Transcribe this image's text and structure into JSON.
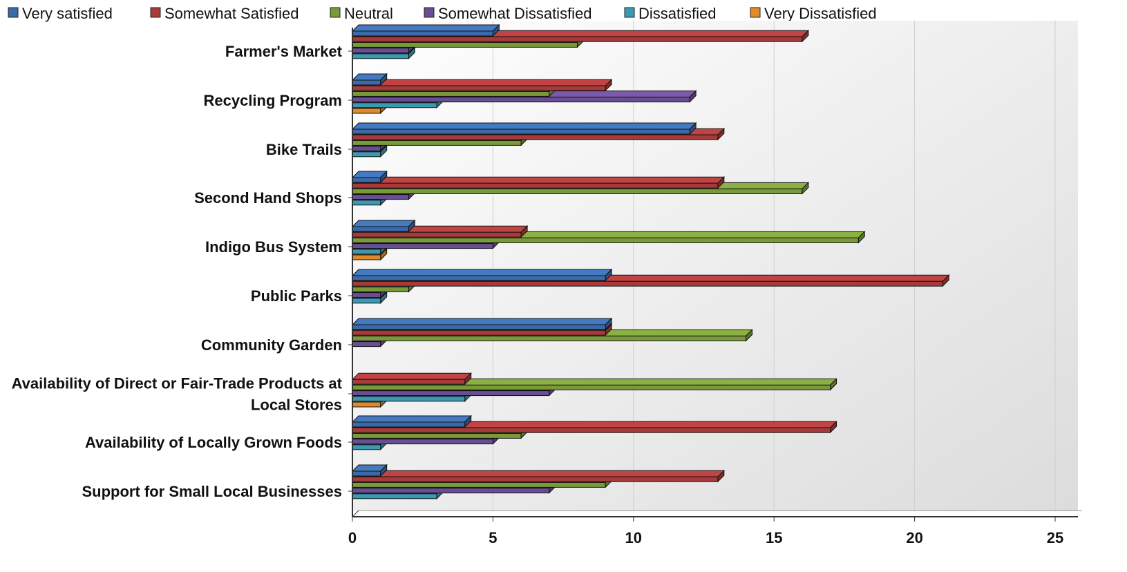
{
  "chart_data": {
    "type": "bar",
    "orientation": "horizontal",
    "grid": true,
    "legend_position": "top",
    "xlim": [
      0,
      25
    ],
    "x_ticks": [
      "0",
      "5",
      "10",
      "15",
      "20",
      "25"
    ],
    "categories": [
      "Farmer's Market",
      "Recycling Program",
      "Bike Trails",
      "Second Hand Shops",
      "Indigo Bus System",
      "Public Parks",
      "Community Garden",
      "Availability of Direct or Fair-Trade Products at Local Stores",
      "Availability of Locally Grown Foods",
      "Support for Small Local Businesses"
    ],
    "category_lines": [
      [
        "Farmer's Market"
      ],
      [
        "Recycling Program"
      ],
      [
        "Bike Trails"
      ],
      [
        "Second Hand Shops"
      ],
      [
        "Indigo Bus System"
      ],
      [
        "Public Parks"
      ],
      [
        "Community Garden"
      ],
      [
        "Availability of Direct or Fair-Trade Products at",
        "Local Stores"
      ],
      [
        "Availability of Locally Grown Foods"
      ],
      [
        "Support for Small Local Businesses"
      ]
    ],
    "series": [
      {
        "name": "Very satisfied",
        "color": "#3a6aa8",
        "values": [
          5,
          1,
          12,
          1,
          2,
          9,
          9,
          0,
          4,
          1
        ]
      },
      {
        "name": "Somewhat Satisfied",
        "color": "#a83a3a",
        "values": [
          16,
          9,
          13,
          13,
          6,
          21,
          9,
          4,
          17,
          13
        ]
      },
      {
        "name": "Neutral",
        "color": "#7a9a3a",
        "values": [
          8,
          7,
          6,
          16,
          18,
          2,
          14,
          17,
          6,
          9
        ]
      },
      {
        "name": "Somewhat Dissatisfied",
        "color": "#6a4e94",
        "values": [
          2,
          12,
          1,
          2,
          5,
          1,
          1,
          7,
          5,
          7
        ]
      },
      {
        "name": "Dissatisfied",
        "color": "#3a9ab0",
        "values": [
          2,
          3,
          1,
          1,
          1,
          1,
          0,
          4,
          1,
          3
        ]
      },
      {
        "name": "Very Dissatisfied",
        "color": "#e08a2a",
        "values": [
          0,
          1,
          0,
          0,
          1,
          0,
          0,
          1,
          0,
          0
        ]
      }
    ]
  }
}
